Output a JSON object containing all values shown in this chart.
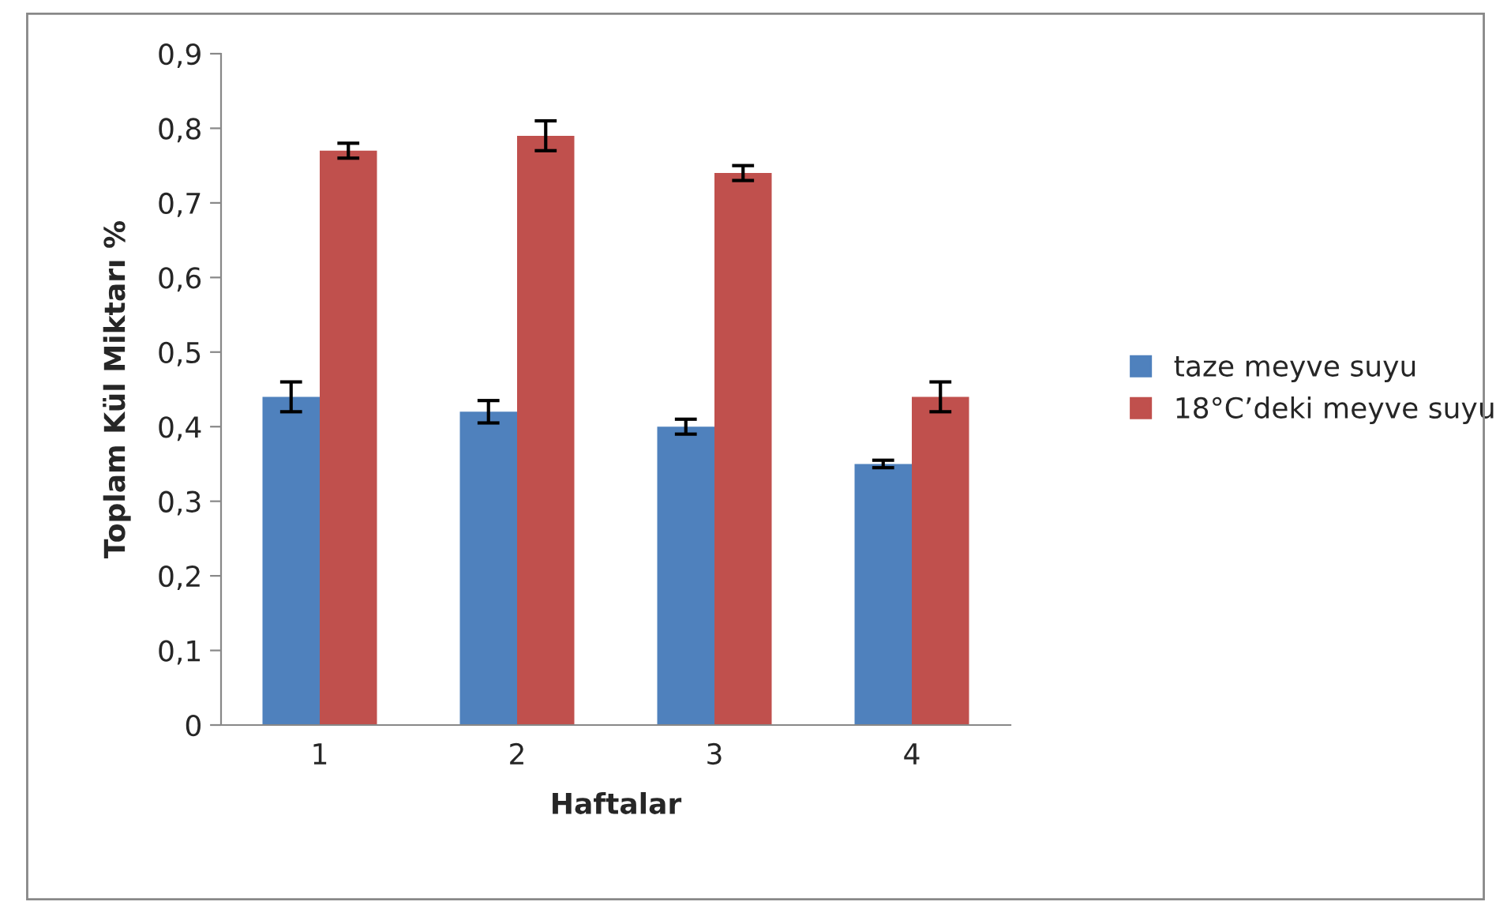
{
  "chart_data": {
    "type": "bar",
    "xlabel": "Haftalar",
    "ylabel": "Toplam Kül Miktarı %",
    "categories": [
      "1",
      "2",
      "3",
      "4"
    ],
    "series": [
      {
        "name": "taze meyve suyu",
        "color": "#4f81bd",
        "values": [
          0.44,
          0.42,
          0.4,
          0.35
        ],
        "errors": [
          0.02,
          0.015,
          0.01,
          0.005
        ]
      },
      {
        "name": "18°C’deki meyve suyu",
        "color": "#c0504d",
        "values": [
          0.77,
          0.79,
          0.74,
          0.44
        ],
        "errors": [
          0.01,
          0.02,
          0.01,
          0.02
        ]
      }
    ],
    "ylim": [
      0,
      0.9
    ],
    "yticks": [
      {
        "value": 0,
        "label": "0"
      },
      {
        "value": 0.1,
        "label": "0,1"
      },
      {
        "value": 0.2,
        "label": "0,2"
      },
      {
        "value": 0.3,
        "label": "0,3"
      },
      {
        "value": 0.4,
        "label": "0,4"
      },
      {
        "value": 0.5,
        "label": "0,5"
      },
      {
        "value": 0.6,
        "label": "0,6"
      },
      {
        "value": 0.7,
        "label": "0,7"
      },
      {
        "value": 0.8,
        "label": "0,8"
      },
      {
        "value": 0.9,
        "label": "0,9"
      }
    ],
    "grid": false,
    "legend": "right"
  }
}
